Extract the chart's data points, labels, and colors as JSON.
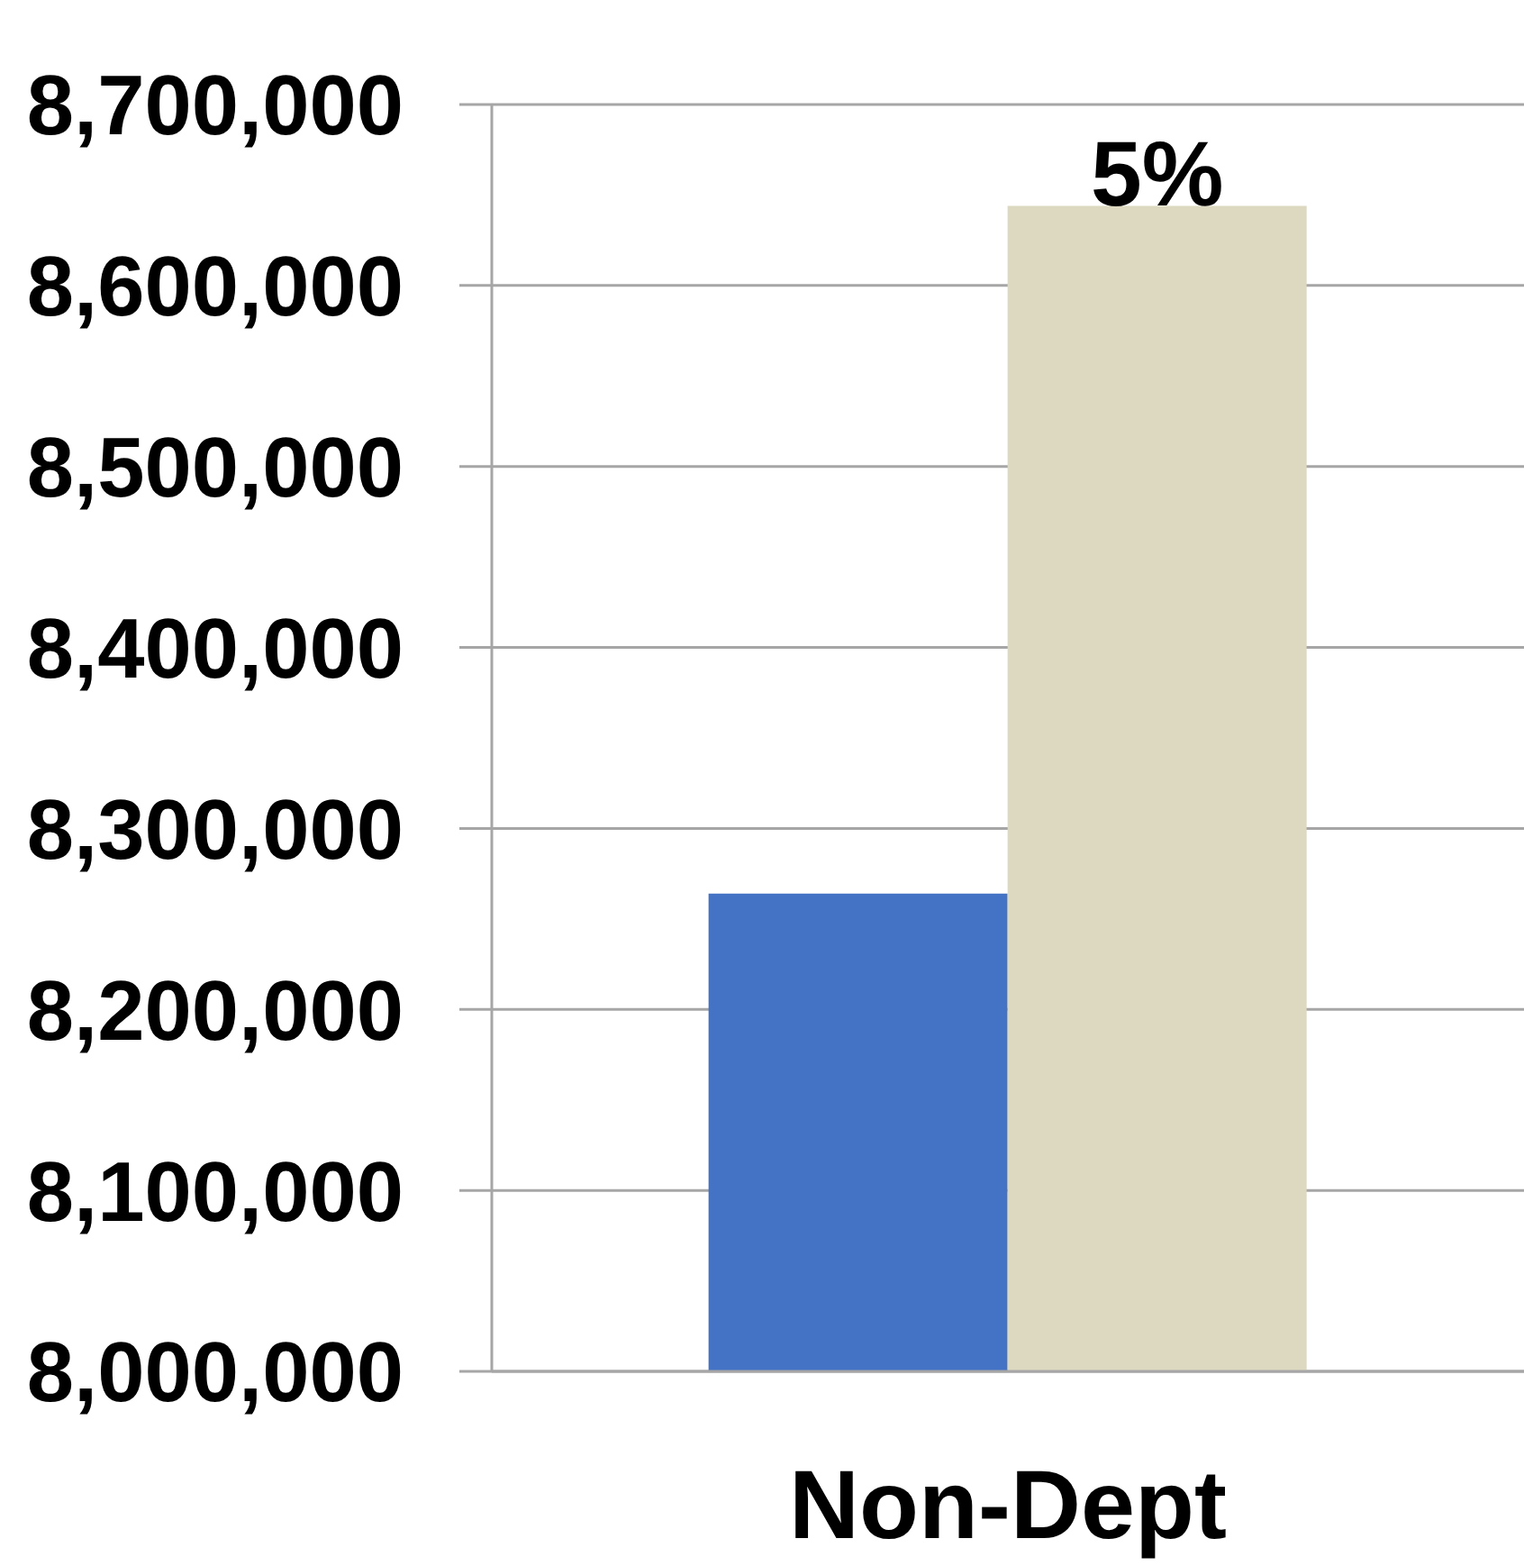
{
  "chart_data": {
    "type": "bar",
    "categories": [
      "Non-Dept"
    ],
    "series": [
      {
        "color": "#4472c4",
        "values": [
          8264000
        ]
      },
      {
        "color": "#ddd8c0",
        "values": [
          8644000
        ]
      }
    ],
    "annotations": [
      {
        "text": "5%",
        "x": "Non-Dept",
        "y": 8644000
      }
    ],
    "ylim": [
      8000000,
      8700000
    ],
    "yticks": [
      {
        "value": 8000000,
        "label": "8,000,000"
      },
      {
        "value": 8100000,
        "label": "8,100,000"
      },
      {
        "value": 8200000,
        "label": "8,200,000"
      },
      {
        "value": 8300000,
        "label": "8,300,000"
      },
      {
        "value": 8400000,
        "label": "8,400,000"
      },
      {
        "value": 8500000,
        "label": "8,500,000"
      },
      {
        "value": 8600000,
        "label": "8,600,000"
      },
      {
        "value": 8700000,
        "label": "8,700,000"
      }
    ],
    "grid": "y"
  }
}
